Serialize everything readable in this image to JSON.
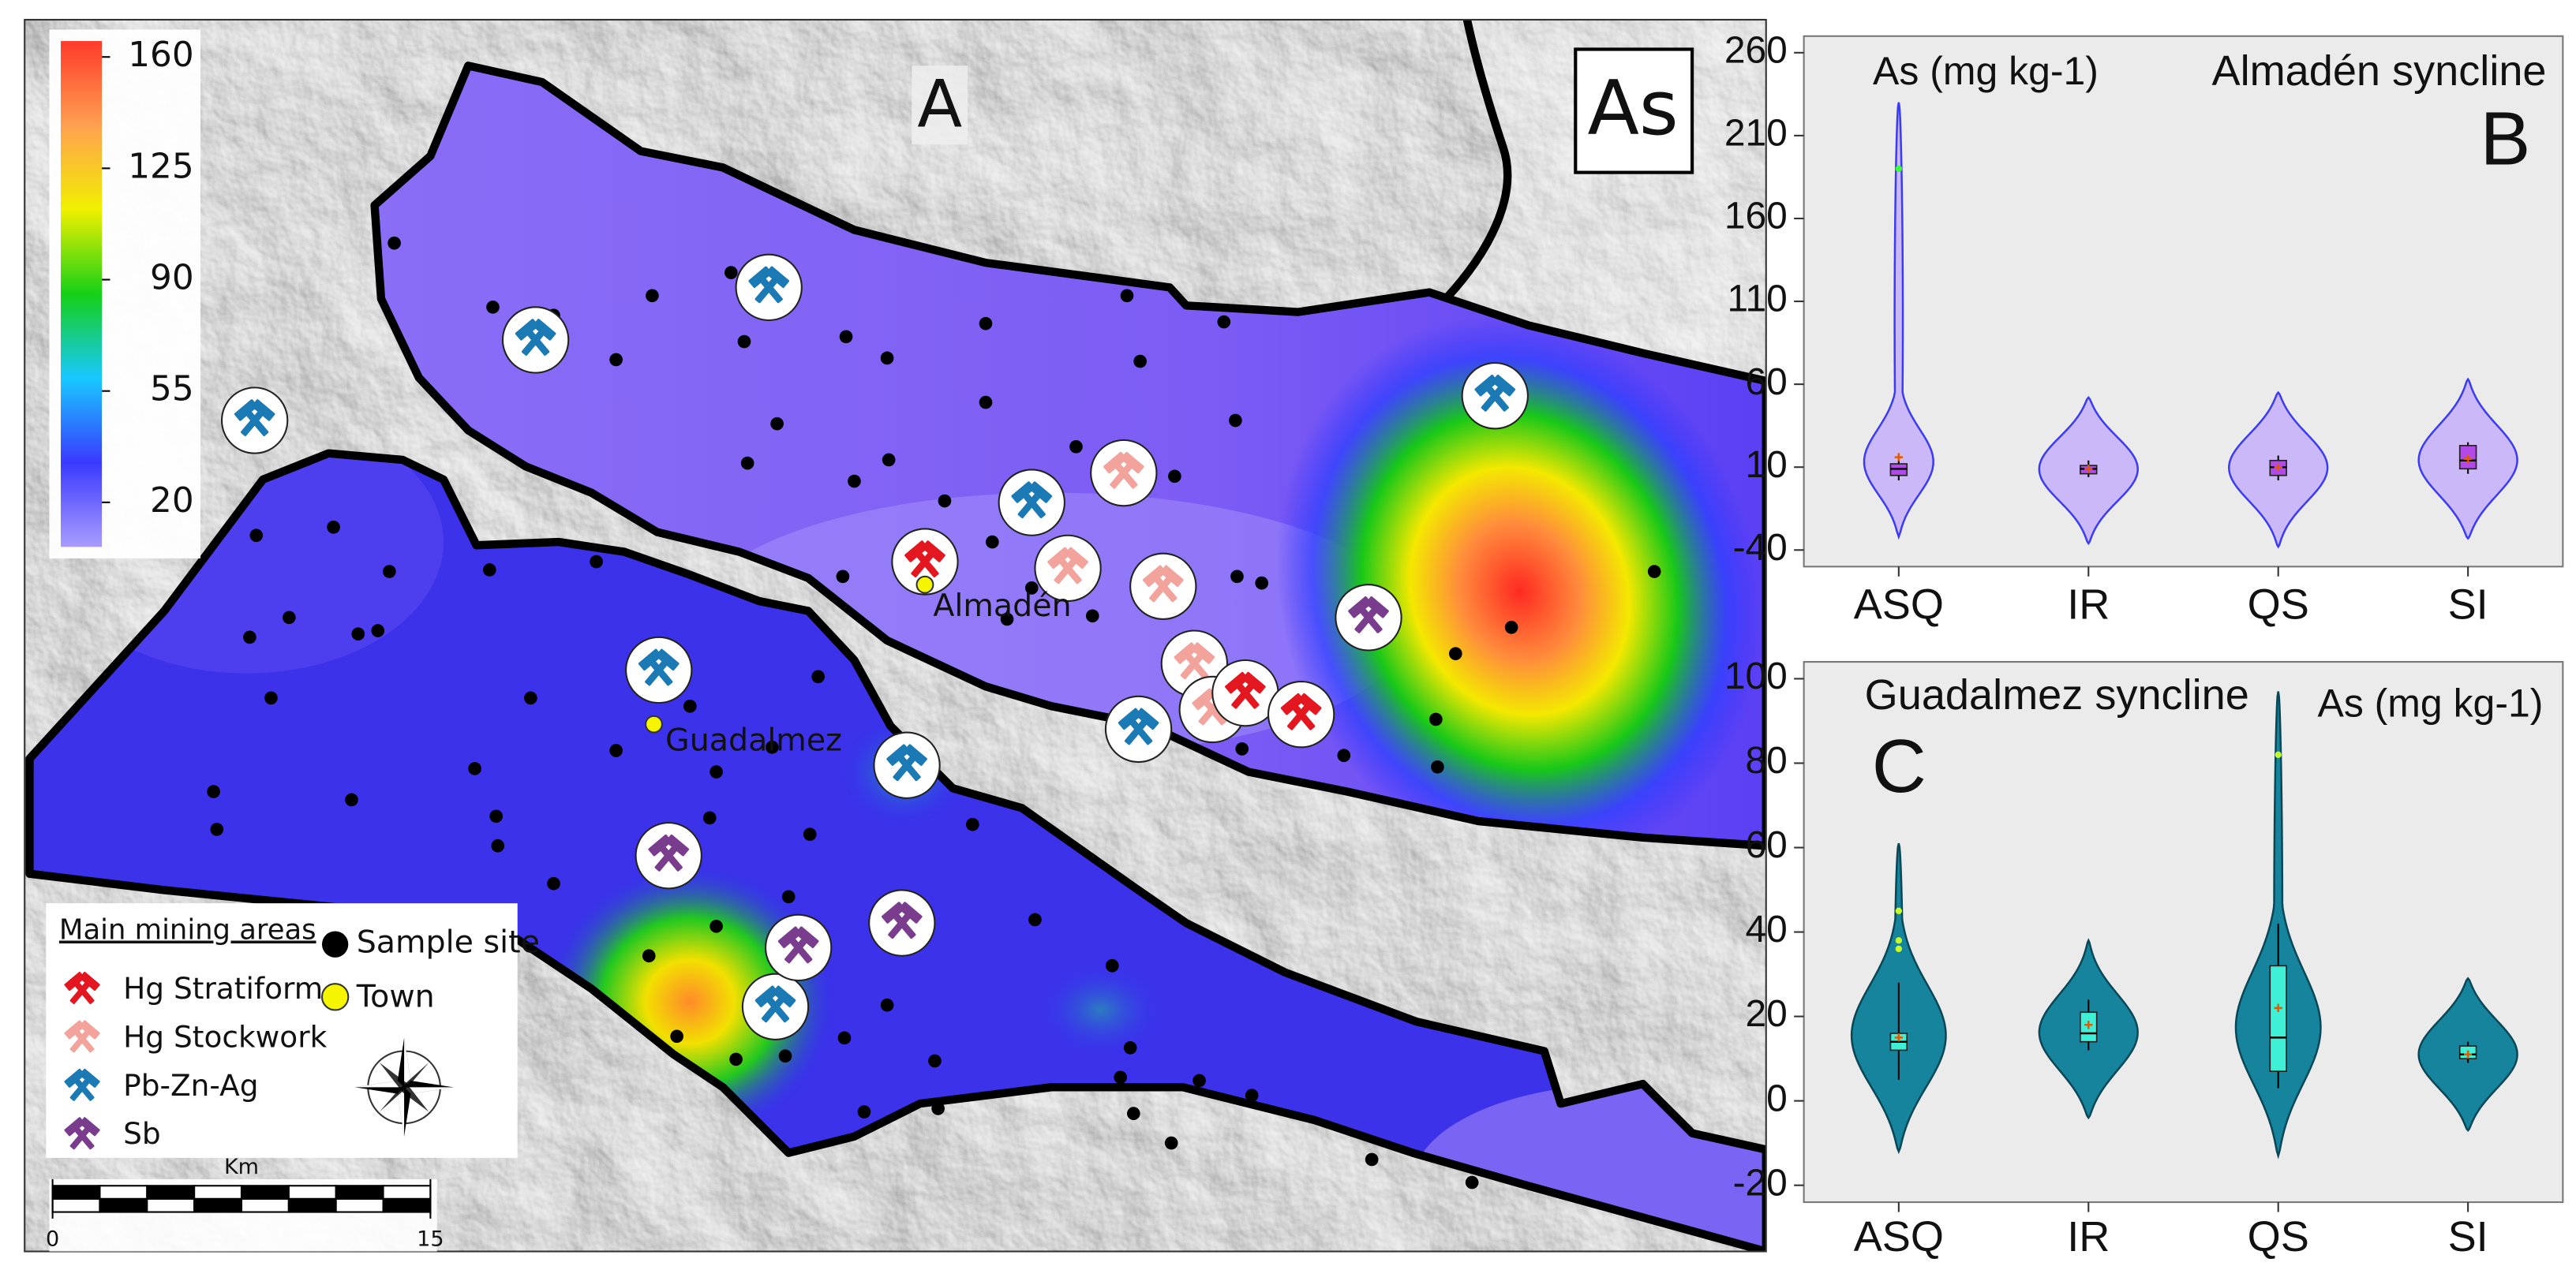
{
  "map": {
    "label": "A",
    "element": "As",
    "colorbar": {
      "lim": [
        6,
        165
      ],
      "ticks": [
        160,
        125,
        90,
        55,
        20
      ],
      "colors": [
        "#a99cff",
        "#3a3aff",
        "#18c8ff",
        "#16d016",
        "#f0f000",
        "#ffa050",
        "#ff3b2b"
      ]
    },
    "legend": {
      "title": "Main mining areas",
      "items": [
        {
          "name": "Hg Stratiform",
          "color": "#e3171f"
        },
        {
          "name": "Hg Stockwork",
          "color": "#f2a39c"
        },
        {
          "name": "Pb-Zn-Ag",
          "color": "#1b79b4"
        },
        {
          "name": "Sb",
          "color": "#7a3d8e"
        }
      ],
      "sample": "Sample site",
      "town": "Town"
    },
    "towns": [
      "Almadén",
      "Guadalmez"
    ],
    "scale": {
      "unit": "Km",
      "ticks": [
        0,
        15
      ]
    }
  },
  "chart_data": [
    {
      "type": "violin",
      "label": "B",
      "title": "Almadén syncline",
      "y_label": "As (mg kg-1)",
      "categories": [
        "ASQ",
        "IR",
        "QS",
        "SI"
      ],
      "ylim": [
        -50,
        270
      ],
      "yticks": [
        -40,
        10,
        60,
        110,
        160,
        210,
        260
      ],
      "violin_color": "#cbb8f8",
      "line_color": "#3b3bef",
      "box_color": "#b24ae9",
      "outlier_color": "#3cff3c",
      "boxes": [
        {
          "violin": [
            -32,
            230
          ],
          "low": 2,
          "q1": 5,
          "median": 9,
          "q3": 12,
          "high": 17,
          "mean": 16,
          "outliers": [
            190
          ]
        },
        {
          "violin": [
            -36,
            52
          ],
          "low": 4,
          "q1": 6,
          "median": 9,
          "q3": 11,
          "high": 14,
          "mean": 9,
          "outliers": []
        },
        {
          "violin": [
            -38,
            55
          ],
          "low": 2,
          "q1": 5,
          "median": 10,
          "q3": 14,
          "high": 17,
          "mean": 10,
          "outliers": []
        },
        {
          "violin": [
            -33,
            63
          ],
          "low": 6,
          "q1": 9,
          "median": 14,
          "q3": 23,
          "high": 25,
          "mean": 15,
          "outliers": []
        }
      ]
    },
    {
      "type": "violin",
      "label": "C",
      "title": "Guadalmez syncline",
      "y_label": "As (mg kg-1)",
      "categories": [
        "ASQ",
        "IR",
        "QS",
        "SI"
      ],
      "ylim": [
        -24,
        104
      ],
      "yticks": [
        -20,
        0,
        20,
        40,
        60,
        80,
        100
      ],
      "violin_color": "#15849c",
      "line_color": "#0a4756",
      "box_color": "#3ff0d6",
      "outlier_color": "#c8ff2a",
      "boxes": [
        {
          "violin": [
            -12,
            61
          ],
          "low": 5,
          "q1": 12,
          "median": 14,
          "q3": 16,
          "high": 28,
          "mean": 15,
          "outliers": [
            36,
            38,
            45
          ]
        },
        {
          "violin": [
            -4,
            38
          ],
          "low": 12,
          "q1": 14,
          "median": 16,
          "q3": 21,
          "high": 24,
          "mean": 18,
          "outliers": []
        },
        {
          "violin": [
            -13,
            97
          ],
          "low": 3,
          "q1": 7,
          "median": 15,
          "q3": 32,
          "high": 42,
          "mean": 22,
          "outliers": [
            82
          ]
        },
        {
          "violin": [
            -7,
            29
          ],
          "low": 9,
          "q1": 10,
          "median": 11,
          "q3": 13,
          "high": 14,
          "mean": 11,
          "outliers": []
        }
      ]
    }
  ]
}
